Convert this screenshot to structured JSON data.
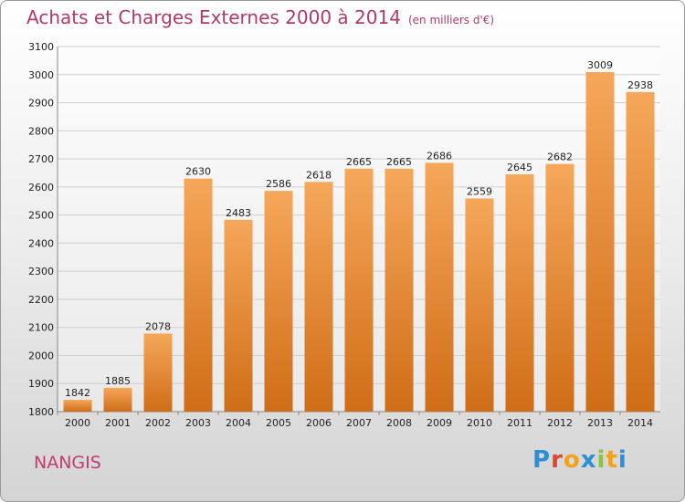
{
  "title": "Achats et Charges Externes 2000 à 2014",
  "subtitle": "(en milliers d'€)",
  "place_name": "NANGIS",
  "logo_text": "Proxiti",
  "colors": {
    "title": "#b13a68",
    "bar_light": "#f6a75a",
    "bar_dark": "#d06d17",
    "grid": "#cfcfcf"
  },
  "chart_data": {
    "type": "bar",
    "categories": [
      "2000",
      "2001",
      "2002",
      "2003",
      "2004",
      "2005",
      "2006",
      "2007",
      "2008",
      "2009",
      "2010",
      "2011",
      "2012",
      "2013",
      "2014"
    ],
    "values": [
      1842,
      1885,
      2078,
      2630,
      2483,
      2586,
      2618,
      2665,
      2665,
      2686,
      2559,
      2645,
      2682,
      3009,
      2938
    ],
    "ylim": [
      1800,
      3100
    ],
    "yticks": [
      1800,
      1900,
      2000,
      2100,
      2200,
      2300,
      2400,
      2500,
      2600,
      2700,
      2800,
      2900,
      3000,
      3100
    ],
    "grid": true
  }
}
